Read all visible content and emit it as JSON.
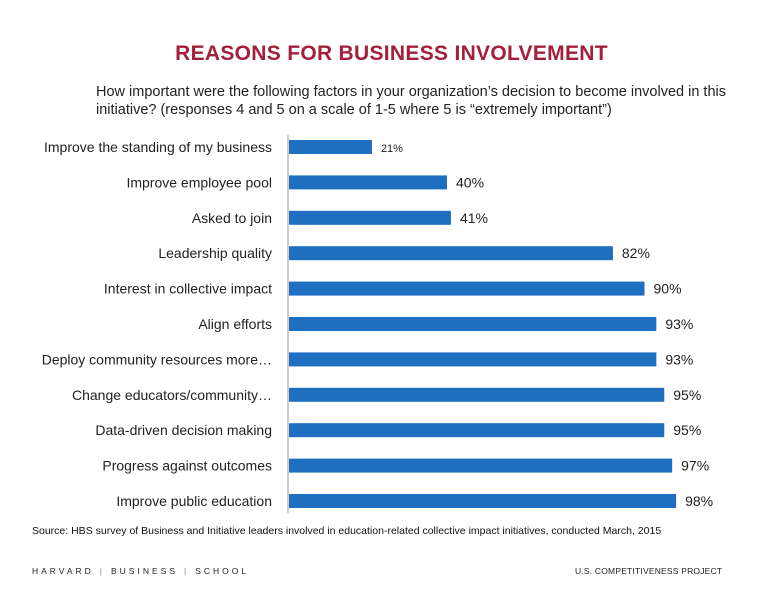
{
  "title": "REASONS FOR BUSINESS INVOLVEMENT",
  "subtitle": "How important were the following factors in your organization’s decision to become involved in this initiative? (responses 4 and 5 on a scale of 1-5 where 5 is “extremely important”)",
  "source": "Source: HBS survey of Business and Initiative leaders involved in education-related collective impact initiatives, conducted March, 2015",
  "footer": {
    "left_parts": [
      "HARVARD",
      "BUSINESS",
      "SCHOOL"
    ],
    "separator": "|",
    "right": "U.S. COMPETITIVENESS PROJECT"
  },
  "colors": {
    "bar": "#1f6fc0",
    "title": "#a3203a"
  },
  "chart_data": {
    "type": "bar",
    "orientation": "horizontal",
    "categories": [
      "Improve the standing of my business",
      "Improve employee pool",
      "Asked to join",
      "Leadership quality",
      "Interest in collective impact",
      "Align  efforts",
      "Deploy community resources more…",
      "Change educators/community…",
      "Data-driven decision making",
      "Progress against outcomes",
      "Improve public education"
    ],
    "values": [
      21,
      40,
      41,
      82,
      90,
      93,
      93,
      95,
      95,
      97,
      98
    ],
    "value_labels": [
      "21%",
      "40%",
      "41%",
      "82%",
      "90%",
      "93%",
      "93%",
      "95%",
      "95%",
      "97%",
      "98%"
    ],
    "xlim": [
      0,
      100
    ],
    "grid": false
  }
}
